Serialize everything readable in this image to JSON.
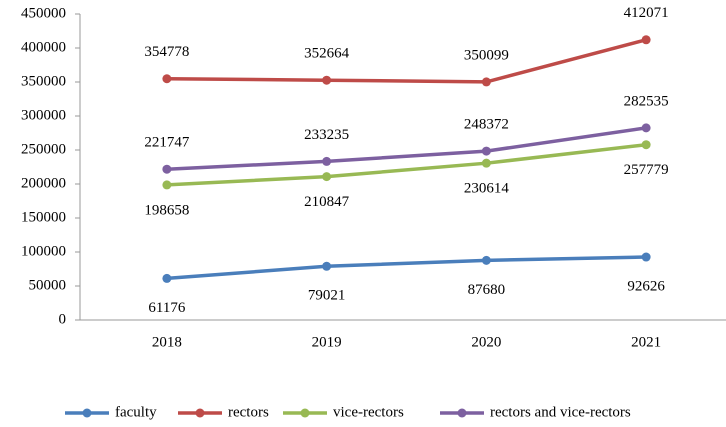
{
  "chart_data": {
    "type": "line",
    "categories": [
      "2018",
      "2019",
      "2020",
      "2021"
    ],
    "series": [
      {
        "name": "faculty",
        "color": "#4a7ebb",
        "values": [
          61176,
          79021,
          87680,
          92626
        ]
      },
      {
        "name": "rectors",
        "color": "#be4b48",
        "values": [
          354778,
          352664,
          350099,
          412071
        ]
      },
      {
        "name": "vice-rectors",
        "color": "#98b954",
        "values": [
          198658,
          210847,
          230614,
          257779
        ]
      },
      {
        "name": "rectors and vice-rectors",
        "color": "#7d60a0",
        "values": [
          221747,
          233235,
          248372,
          282535
        ]
      }
    ],
    "ylim": [
      0,
      450000
    ],
    "yticks": [
      0,
      50000,
      100000,
      150000,
      200000,
      250000,
      300000,
      350000,
      400000,
      450000
    ],
    "grid": false,
    "legend": "bottom"
  }
}
